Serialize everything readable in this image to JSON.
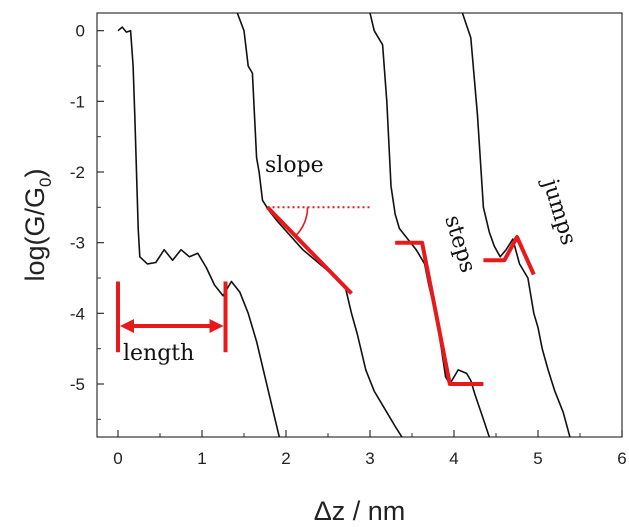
{
  "chart_data": {
    "type": "line",
    "xlabel": "Δz / nm",
    "ylabel_main": "log(G/G",
    "ylabel_sub": "0",
    "ylabel_tail": ")",
    "xlim": [
      -0.25,
      6.0
    ],
    "ylim": [
      -5.75,
      0.25
    ],
    "xticks": [
      0,
      1,
      2,
      3,
      4,
      5,
      6
    ],
    "xtick_labels": [
      "0",
      "1",
      "2",
      "3",
      "4",
      "5",
      "6"
    ],
    "yticks": [
      0,
      -1,
      -2,
      -3,
      -4,
      -5
    ],
    "ytick_labels": [
      "0",
      "-1",
      "-2",
      "-3",
      "-4",
      "-5"
    ],
    "grid": false,
    "series": [
      {
        "color": "#111111",
        "points": [
          [
            0.0,
            0.0
          ],
          [
            0.05,
            0.05
          ],
          [
            0.1,
            -0.02
          ],
          [
            0.15,
            0.0
          ],
          [
            0.18,
            -0.5
          ],
          [
            0.2,
            -1.2
          ],
          [
            0.22,
            -2.0
          ],
          [
            0.24,
            -2.8
          ],
          [
            0.26,
            -3.2
          ],
          [
            0.35,
            -3.3
          ],
          [
            0.45,
            -3.28
          ],
          [
            0.55,
            -3.1
          ],
          [
            0.65,
            -3.25
          ],
          [
            0.75,
            -3.1
          ],
          [
            0.85,
            -3.2
          ],
          [
            0.95,
            -3.15
          ],
          [
            1.05,
            -3.35
          ],
          [
            1.15,
            -3.6
          ],
          [
            1.25,
            -3.75
          ],
          [
            1.35,
            -3.55
          ],
          [
            1.45,
            -3.7
          ],
          [
            1.55,
            -4.0
          ],
          [
            1.65,
            -4.4
          ],
          [
            1.75,
            -4.9
          ],
          [
            1.85,
            -5.4
          ],
          [
            1.92,
            -5.75
          ]
        ]
      },
      {
        "color": "#111111",
        "points": [
          [
            1.42,
            0.25
          ],
          [
            1.5,
            0.0
          ],
          [
            1.55,
            -0.5
          ],
          [
            1.6,
            -0.6
          ],
          [
            1.65,
            -1.8
          ],
          [
            1.68,
            -2.0
          ],
          [
            1.72,
            -2.4
          ],
          [
            1.8,
            -2.55
          ],
          [
            1.9,
            -2.7
          ],
          [
            2.05,
            -2.9
          ],
          [
            2.2,
            -3.1
          ],
          [
            2.35,
            -3.25
          ],
          [
            2.5,
            -3.4
          ],
          [
            2.6,
            -3.5
          ],
          [
            2.7,
            -3.6
          ],
          [
            2.78,
            -4.0
          ],
          [
            2.85,
            -4.3
          ],
          [
            2.95,
            -4.8
          ],
          [
            3.05,
            -5.1
          ],
          [
            3.15,
            -5.3
          ],
          [
            3.3,
            -5.6
          ],
          [
            3.38,
            -5.75
          ]
        ]
      },
      {
        "color": "#111111",
        "points": [
          [
            3.0,
            0.25
          ],
          [
            3.05,
            0.0
          ],
          [
            3.15,
            -0.2
          ],
          [
            3.2,
            -1.0
          ],
          [
            3.25,
            -2.2
          ],
          [
            3.3,
            -2.6
          ],
          [
            3.35,
            -2.8
          ],
          [
            3.45,
            -2.95
          ],
          [
            3.55,
            -3.1
          ],
          [
            3.65,
            -3.3
          ],
          [
            3.7,
            -3.6
          ],
          [
            3.78,
            -4.0
          ],
          [
            3.85,
            -4.5
          ],
          [
            3.9,
            -4.9
          ],
          [
            3.95,
            -5.0
          ],
          [
            4.05,
            -4.8
          ],
          [
            4.15,
            -4.85
          ],
          [
            4.2,
            -4.95
          ],
          [
            4.25,
            -5.15
          ],
          [
            4.35,
            -5.5
          ],
          [
            4.42,
            -5.75
          ]
        ]
      },
      {
        "color": "#111111",
        "points": [
          [
            4.1,
            0.25
          ],
          [
            4.2,
            -0.1
          ],
          [
            4.28,
            -1.2
          ],
          [
            4.35,
            -2.5
          ],
          [
            4.42,
            -2.85
          ],
          [
            4.48,
            -3.05
          ],
          [
            4.55,
            -3.2
          ],
          [
            4.62,
            -3.1
          ],
          [
            4.7,
            -2.95
          ],
          [
            4.78,
            -3.3
          ],
          [
            4.88,
            -3.5
          ],
          [
            4.95,
            -4.0
          ],
          [
            5.0,
            -4.2
          ],
          [
            5.05,
            -4.5
          ],
          [
            5.12,
            -4.8
          ],
          [
            5.2,
            -5.1
          ],
          [
            5.3,
            -5.4
          ],
          [
            5.38,
            -5.75
          ]
        ]
      }
    ],
    "overlays": [
      {
        "color": "#e8191b",
        "points": [
          [
            1.78,
            -2.5
          ],
          [
            2.78,
            -3.72
          ]
        ]
      },
      {
        "color": "#e8191b",
        "points": [
          [
            3.3,
            -3.0
          ],
          [
            3.62,
            -3.0
          ],
          [
            3.95,
            -5.0
          ],
          [
            4.35,
            -5.0
          ]
        ]
      },
      {
        "color": "#e8191b",
        "points": [
          [
            4.35,
            -3.25
          ],
          [
            4.6,
            -3.25
          ],
          [
            4.75,
            -2.92
          ],
          [
            4.95,
            -3.45
          ]
        ]
      }
    ],
    "reference_line": {
      "color": "#e8191b",
      "style": "dotted",
      "points": [
        [
          1.78,
          -2.5
        ],
        [
          3.0,
          -2.5
        ]
      ]
    },
    "length_marker": {
      "color": "#e8191b",
      "from": 0.0,
      "to": 1.28,
      "y": -4.18,
      "cap_top": -3.55,
      "cap_bottom": -4.55
    },
    "annotations": {
      "slope": "slope",
      "steps": "steps",
      "jumps": "jumps",
      "length": "length"
    }
  }
}
